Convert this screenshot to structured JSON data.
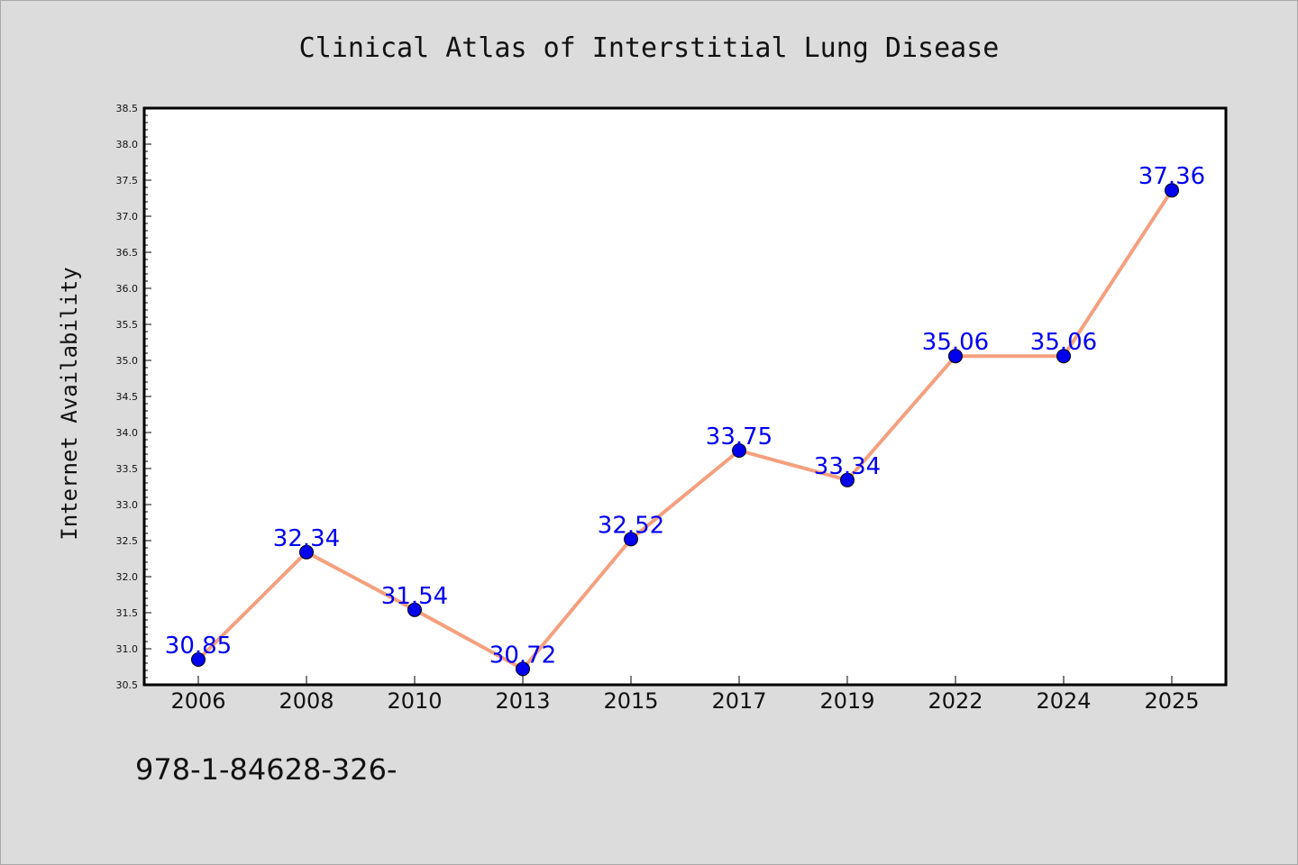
{
  "chart_data": {
    "type": "line",
    "title": "Clinical Atlas of Interstitial Lung Disease",
    "xlabel": "",
    "ylabel": "Internet Availability",
    "categories": [
      "2006",
      "2008",
      "2010",
      "2013",
      "2015",
      "2017",
      "2019",
      "2022",
      "2024",
      "2025"
    ],
    "values": [
      30.85,
      32.34,
      31.54,
      30.72,
      32.52,
      33.75,
      33.34,
      35.06,
      35.06,
      37.36
    ],
    "value_labels": [
      "30.85",
      "32.34",
      "31.54",
      "30.72",
      "32.52",
      "33.75",
      "33.34",
      "35.06",
      "35.06",
      "37.36"
    ],
    "ylim": [
      30.5,
      38.5
    ],
    "yticks": [
      "30.5",
      "31.0",
      "31.5",
      "32.0",
      "32.5",
      "33.0",
      "33.5",
      "34.0",
      "34.5",
      "35.0",
      "35.5",
      "36.0",
      "36.5",
      "37.0",
      "37.5",
      "38.0",
      "38.5"
    ],
    "grid": false,
    "legend": "none",
    "colors": {
      "line": "#f4a07e",
      "marker": "#0000ee",
      "label": "#0000ee",
      "background": "#dcdcdc",
      "plot_background": "#ffffff"
    }
  },
  "footer": {
    "text": "978-1-84628-326-"
  }
}
